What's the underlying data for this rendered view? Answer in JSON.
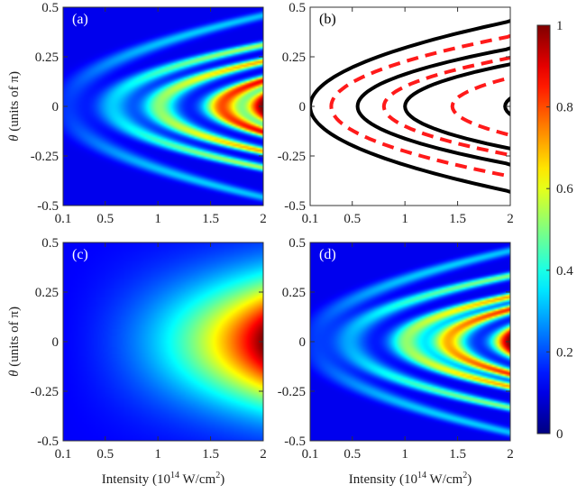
{
  "chart_data": [
    {
      "type": "heatmap",
      "panel_label": "(a)",
      "x_ticks": [
        "0.1",
        "0.5",
        "1",
        "1.5",
        "2"
      ],
      "y_ticks": [
        "0.5",
        "0.25",
        "0",
        "-0.25",
        "-0.5"
      ],
      "xlim": [
        0.1,
        2
      ],
      "ylim": [
        -0.5,
        0.5
      ],
      "ylabel_symbol": "θ",
      "ylabel_rest": " (units of π)",
      "pattern": "fringes",
      "fringe_intensities": [
        0.1,
        0.55,
        1.0,
        1.6,
        2.0
      ],
      "peak_value": 1.0
    },
    {
      "type": "line",
      "panel_label": "(b)",
      "x_ticks": [
        "0.1",
        "0.5",
        "1",
        "1.5",
        "2"
      ],
      "y_ticks": [
        "0.5",
        "0.25",
        "0",
        "-0.25",
        "-0.5"
      ],
      "xlim": [
        0.1,
        2
      ],
      "ylim": [
        -0.5,
        0.5
      ],
      "series": [
        {
          "style": "solid-black",
          "vertex_intensities": [
            0.1,
            0.55,
            1.0,
            1.95
          ]
        },
        {
          "style": "dashed-red",
          "vertex_intensities": [
            0.3,
            0.8,
            1.45
          ]
        }
      ]
    },
    {
      "type": "heatmap",
      "panel_label": "(c)",
      "x_ticks": [
        "0.1",
        "0.5",
        "1",
        "1.5",
        "2"
      ],
      "y_ticks": [
        "0.5",
        "0.25",
        "0",
        "-0.25",
        "-0.5"
      ],
      "xlim": [
        0.1,
        2
      ],
      "ylim": [
        -0.5,
        0.5
      ],
      "ylabel_symbol": "θ",
      "ylabel_rest": " (units of π)",
      "xlabel": "Intensity (10",
      "xlabel_exp": "14",
      "xlabel_mid": " W/cm",
      "xlabel_exp2": "2",
      "xlabel_end": ")",
      "pattern": "smooth",
      "peak_value": 1.0
    },
    {
      "type": "heatmap",
      "panel_label": "(d)",
      "x_ticks": [
        "0.1",
        "0.5",
        "1",
        "1.5",
        "2"
      ],
      "y_ticks": [
        "0.5",
        "0.25",
        "0",
        "-0.25",
        "-0.5"
      ],
      "xlim": [
        0.1,
        2
      ],
      "ylim": [
        -0.5,
        0.5
      ],
      "xlabel": "Intensity (10",
      "xlabel_exp": "14",
      "xlabel_mid": " W/cm",
      "xlabel_exp2": "2",
      "xlabel_end": ")",
      "pattern": "fringes",
      "fringe_intensities": [
        0.1,
        0.45,
        1.0,
        1.4,
        2.0
      ],
      "peak_value": 1.0
    }
  ],
  "colorbar": {
    "ticks": [
      "1",
      "0.8",
      "0.6",
      "0.4",
      "0.2",
      "0"
    ],
    "colormap": "jet",
    "range": [
      0,
      1
    ]
  },
  "colors": {
    "dashed_red": "#ff1a1a",
    "solid_black": "#000000",
    "panel_label_light": "#ffffff",
    "panel_label_dark": "#000000"
  }
}
